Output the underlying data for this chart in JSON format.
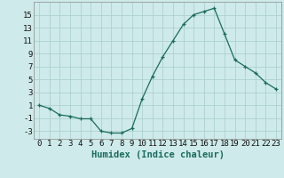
{
  "x": [
    0,
    1,
    2,
    3,
    4,
    5,
    6,
    7,
    8,
    9,
    10,
    11,
    12,
    13,
    14,
    15,
    16,
    17,
    18,
    19,
    20,
    21,
    22,
    23
  ],
  "y": [
    1.0,
    0.5,
    -0.5,
    -0.7,
    -1.1,
    -1.1,
    -3.0,
    -3.3,
    -3.3,
    -2.6,
    2.0,
    5.5,
    8.5,
    11.0,
    13.5,
    15.0,
    15.5,
    16.0,
    12.0,
    8.0,
    7.0,
    6.0,
    4.5,
    3.5
  ],
  "xlabel": "Humidex (Indice chaleur)",
  "xlim": [
    -0.5,
    23.5
  ],
  "ylim": [
    -4.2,
    17.0
  ],
  "yticks": [
    -3,
    -1,
    1,
    3,
    5,
    7,
    9,
    11,
    13,
    15
  ],
  "line_color": "#1a6b5e",
  "marker": "+",
  "bg_color": "#ceeaea",
  "grid_color": "#a8cccc",
  "label_fontsize": 7.5,
  "tick_fontsize": 6.5
}
